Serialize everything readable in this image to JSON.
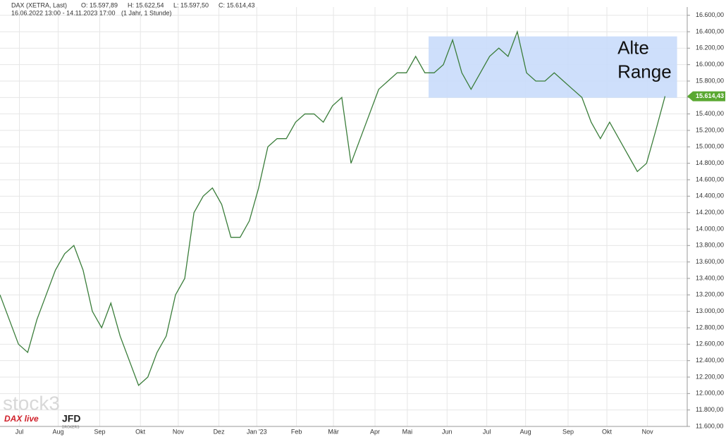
{
  "chart_data": {
    "type": "line",
    "title": "DAX (XETRA, Last)",
    "ohlc_labels": [
      "O: 15.597,89",
      "H: 15.622,54",
      "L: 15.597,50",
      "C: 15.614,43"
    ],
    "subtitle": "16.06.2022 13:00 - 14.11.2023 17:00",
    "subtitle_note": "(1 Jahr, 1 Stunde)",
    "x": [
      0,
      1,
      2,
      3,
      4,
      5,
      6,
      7,
      8,
      9,
      10,
      11,
      12,
      13,
      14,
      15,
      16,
      17,
      18,
      19,
      20,
      21,
      22,
      23,
      24,
      25,
      26,
      27,
      28,
      29,
      30,
      31,
      32,
      33,
      34,
      35,
      36,
      37,
      38,
      39,
      40,
      41,
      42,
      43,
      44,
      45,
      46,
      47,
      48,
      49,
      50,
      51,
      52,
      53,
      54,
      55,
      56,
      57,
      58,
      59,
      60,
      61,
      62,
      63,
      64,
      65,
      66,
      67,
      68,
      69,
      70,
      71,
      72
    ],
    "series": [
      {
        "name": "DAX",
        "color": "#3a7d3a",
        "values": [
          13200,
          12900,
          12600,
          12500,
          12900,
          13200,
          13500,
          13700,
          13800,
          13500,
          13000,
          12800,
          13100,
          12700,
          12400,
          12100,
          12200,
          12500,
          12700,
          13200,
          13400,
          14200,
          14400,
          14500,
          14300,
          13900,
          13900,
          14100,
          14500,
          15000,
          15100,
          15100,
          15300,
          15400,
          15400,
          15300,
          15500,
          15600,
          14800,
          15100,
          15400,
          15700,
          15800,
          15900,
          15900,
          16100,
          15900,
          15900,
          16000,
          16300,
          15900,
          15700,
          15900,
          16100,
          16200,
          16100,
          16400,
          15900,
          15800,
          15800,
          15900,
          15800,
          15700,
          15600,
          15300,
          15100,
          15300,
          15100,
          14900,
          14700,
          14800,
          15200,
          15614.43
        ]
      }
    ],
    "last_price": {
      "value": 15614.43,
      "label": "15.614,43"
    },
    "highlight": {
      "x": [
        46.4,
        73.3
      ],
      "y": [
        15597,
        16343
      ],
      "label": [
        "Alte",
        "Range"
      ]
    },
    "xlim": [
      0,
      74.4
    ],
    "xticks": [
      {
        "value": 2.1,
        "label": "Jul"
      },
      {
        "value": 6.3,
        "label": "Aug"
      },
      {
        "value": 10.8,
        "label": "Sep"
      },
      {
        "value": 15.2,
        "label": "Okt"
      },
      {
        "value": 19.3,
        "label": "Nov"
      },
      {
        "value": 23.7,
        "label": "Dez"
      },
      {
        "value": 27.8,
        "label": "Jan '23"
      },
      {
        "value": 32.1,
        "label": "Feb"
      },
      {
        "value": 36.1,
        "label": "Mär"
      },
      {
        "value": 40.6,
        "label": "Apr"
      },
      {
        "value": 44.1,
        "label": "Mai"
      },
      {
        "value": 48.4,
        "label": "Jun"
      },
      {
        "value": 52.7,
        "label": "Jul"
      },
      {
        "value": 56.9,
        "label": "Aug"
      },
      {
        "value": 61.5,
        "label": "Sep"
      },
      {
        "value": 65.7,
        "label": "Okt"
      },
      {
        "value": 70.1,
        "label": "Nov"
      }
    ],
    "ylim": [
      11600,
      16700
    ],
    "yticks": [
      {
        "value": 11600,
        "label": "11.600,00"
      },
      {
        "value": 11800,
        "label": "11.800,00"
      },
      {
        "value": 12000,
        "label": "12.000,00"
      },
      {
        "value": 12200,
        "label": "12.200,00"
      },
      {
        "value": 12400,
        "label": "12.400,00"
      },
      {
        "value": 12600,
        "label": "12.600,00"
      },
      {
        "value": 12800,
        "label": "12.800,00"
      },
      {
        "value": 13000,
        "label": "13.000,00"
      },
      {
        "value": 13200,
        "label": "13.200,00"
      },
      {
        "value": 13400,
        "label": "13.400,00"
      },
      {
        "value": 13600,
        "label": "13.600,00"
      },
      {
        "value": 13800,
        "label": "13.800,00"
      },
      {
        "value": 14000,
        "label": "14.000,00"
      },
      {
        "value": 14200,
        "label": "14.200,00"
      },
      {
        "value": 14400,
        "label": "14.400,00"
      },
      {
        "value": 14600,
        "label": "14.600,00"
      },
      {
        "value": 14800,
        "label": "14.800,00"
      },
      {
        "value": 15000,
        "label": "15.000,00"
      },
      {
        "value": 15200,
        "label": "15.200,00"
      },
      {
        "value": 15400,
        "label": "15.400,00"
      },
      {
        "value": 15600,
        "label": "15.600,00"
      },
      {
        "value": 15800,
        "label": "15.800,00"
      },
      {
        "value": 16000,
        "label": "16.000,00"
      },
      {
        "value": 16200,
        "label": "16.200,00"
      },
      {
        "value": 16400,
        "label": "16.400,00"
      },
      {
        "value": 16600,
        "label": "16.600,00"
      }
    ],
    "grid": true,
    "watermark": {
      "brand": "stock3",
      "logo1": "DAX live",
      "logo2": "JFD",
      "logo2_sub": "BROKERS"
    }
  }
}
